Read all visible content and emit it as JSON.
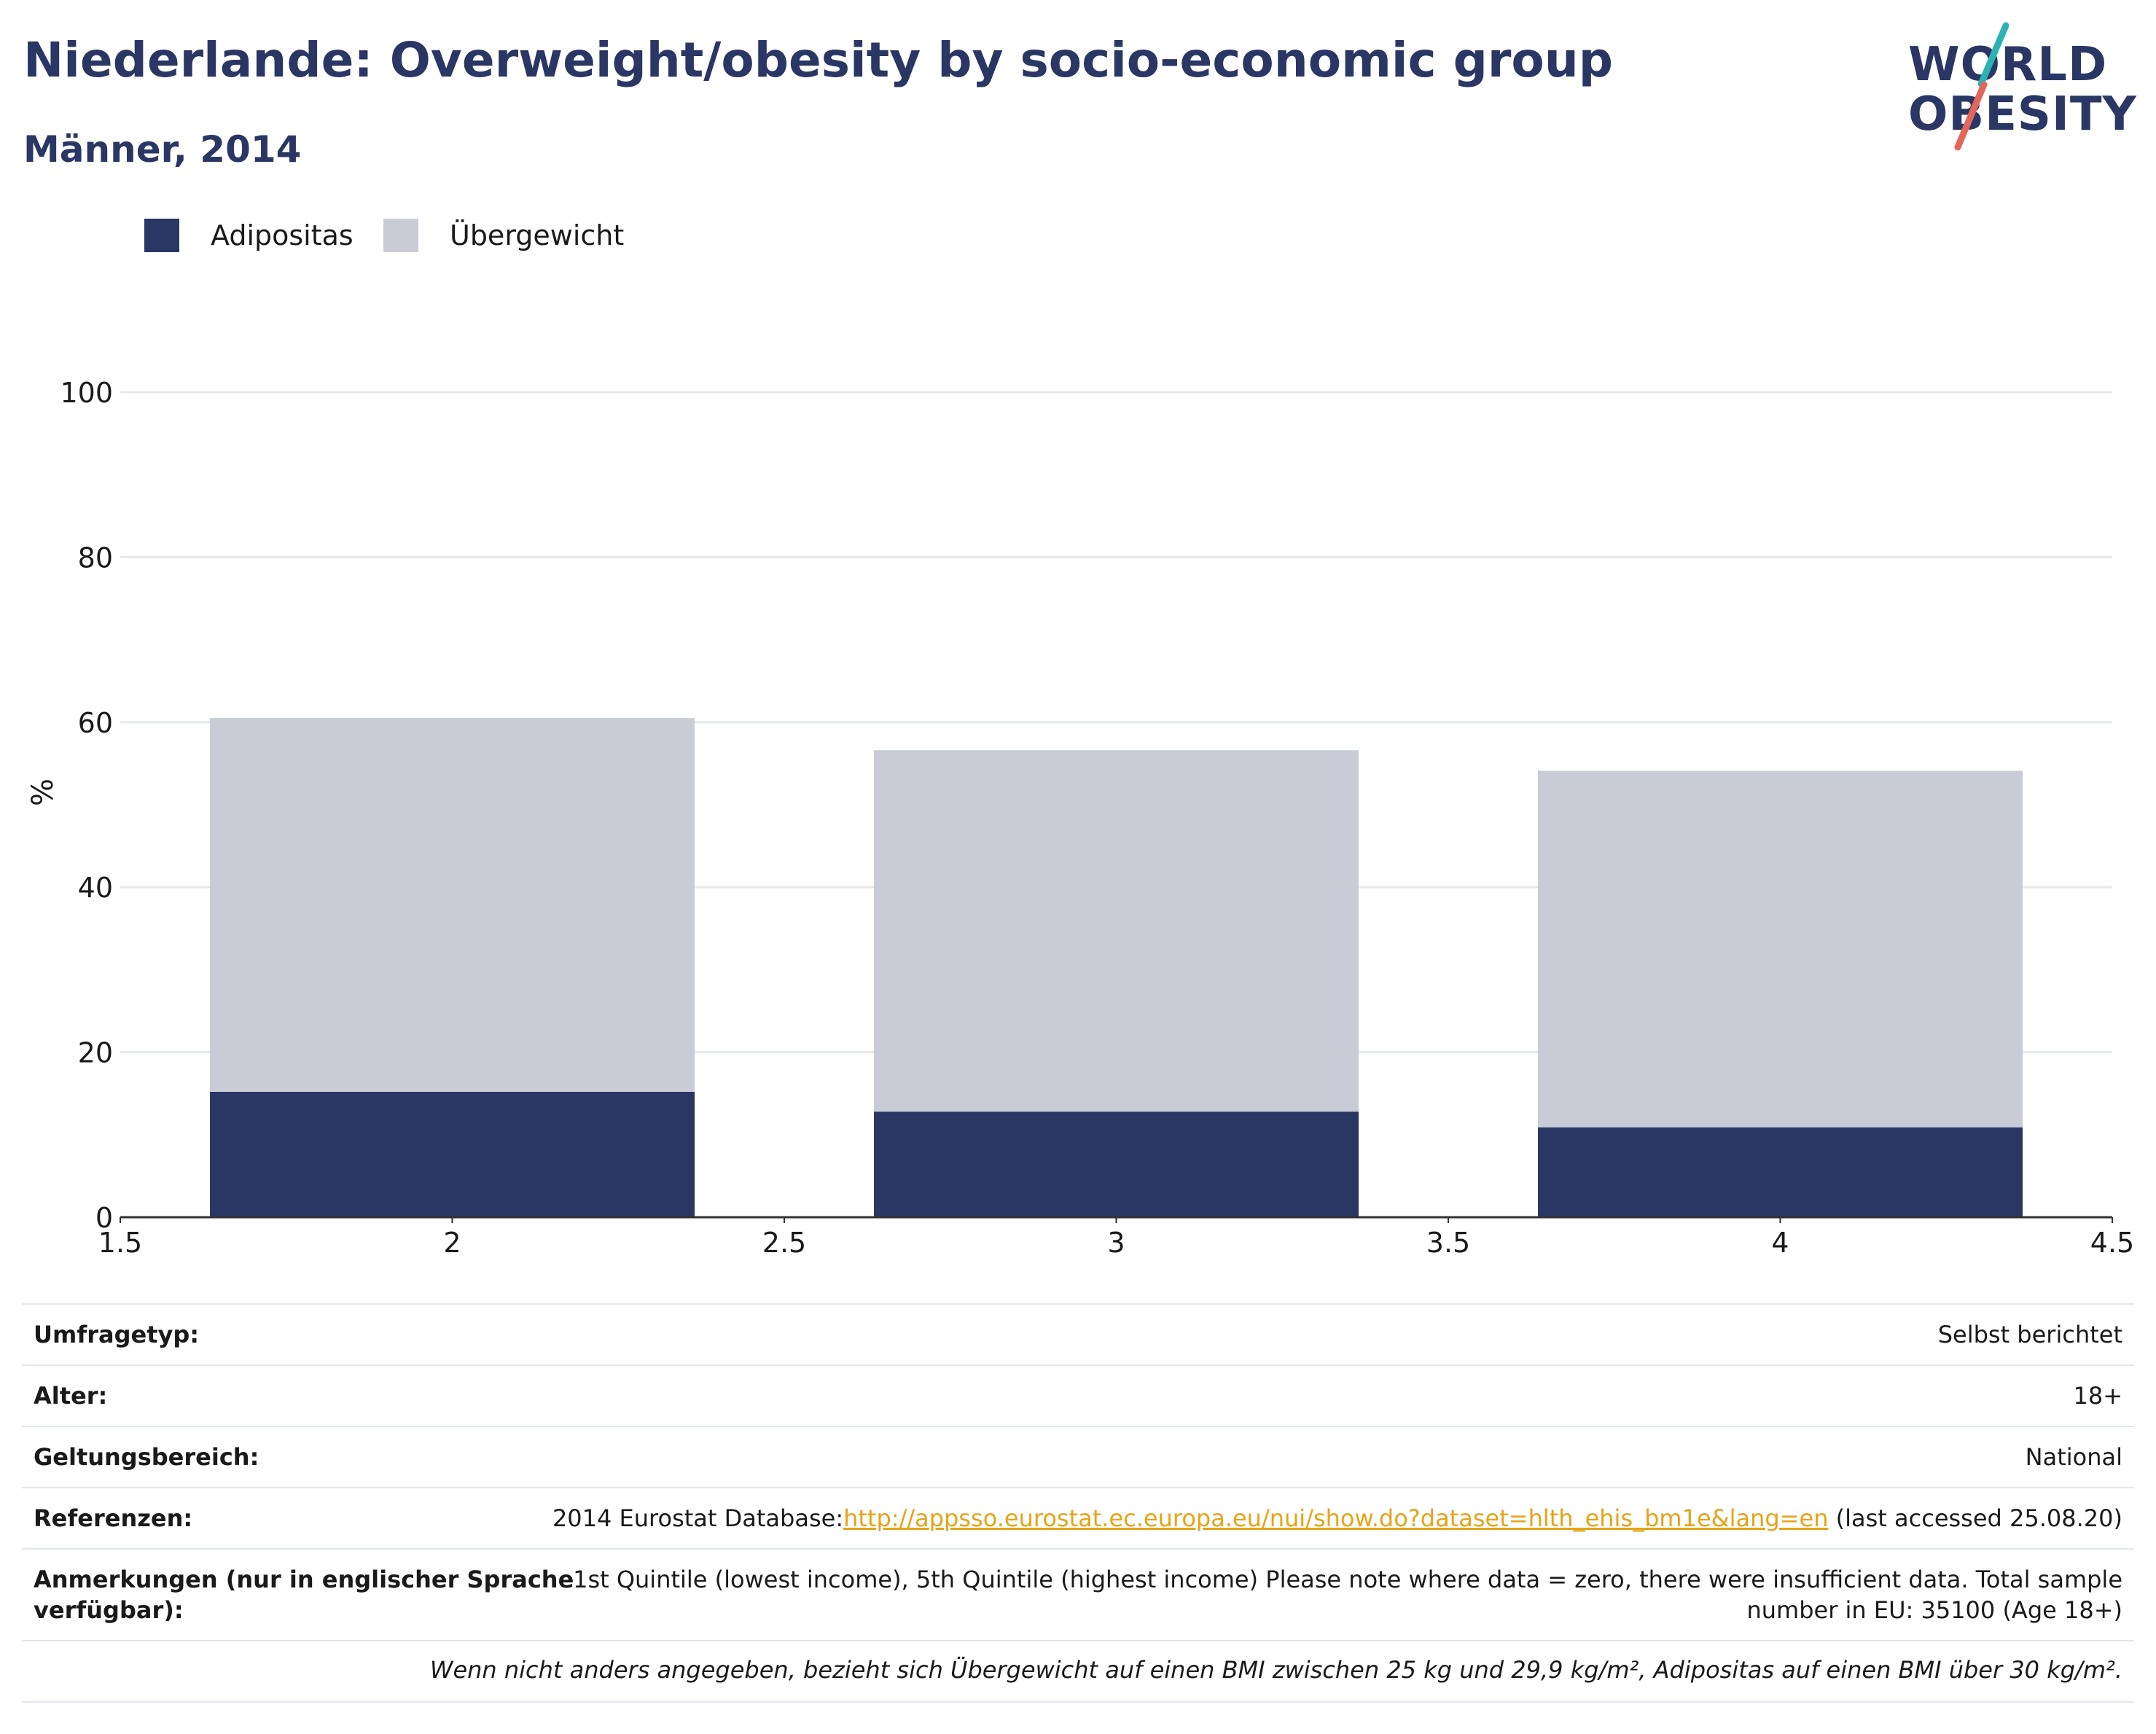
{
  "header": {
    "title": "Niederlande: Overweight/obesity by socio-economic group",
    "subtitle": "Männer, 2014"
  },
  "logo": {
    "line1": "WORLD",
    "line2": "OBESITY",
    "accent_colors": [
      "#2bb3b1",
      "#e2665a"
    ]
  },
  "legend": [
    {
      "label": "Adipositas",
      "color": "#2a3663"
    },
    {
      "label": "Übergewicht",
      "color": "#c9ccd7"
    }
  ],
  "chart_data": {
    "type": "bar",
    "stacked": true,
    "x": [
      2,
      3,
      4
    ],
    "series": [
      {
        "name": "Adipositas",
        "color": "#2a3663",
        "values": [
          15.2,
          12.8,
          10.9
        ]
      },
      {
        "name": "Übergewicht",
        "color": "#c9ccd7",
        "values": [
          45.3,
          43.8,
          43.2
        ]
      }
    ],
    "ylabel": "%",
    "xlim": [
      1.5,
      4.5
    ],
    "ylim": [
      0,
      100
    ],
    "xticks": [
      "1.5",
      "2",
      "2.5",
      "3",
      "3.5",
      "4",
      "4.5"
    ],
    "yticks": [
      "0",
      "20",
      "40",
      "60",
      "80",
      "100"
    ],
    "grid": true,
    "legend_position": "top-left"
  },
  "info": [
    {
      "label": "Umfragetyp:",
      "value": "Selbst berichtet"
    },
    {
      "label": "Alter:",
      "value": "18+"
    },
    {
      "label": "Geltungsbereich:",
      "value": "National"
    },
    {
      "label": "Referenzen:",
      "value_prefix": "2014 Eurostat Database:",
      "link": "http://appsso.eurostat.ec.europa.eu/nui/show.do?dataset=hlth_ehis_bm1e&lang=en",
      "value_suffix": " (last accessed 25.08.20)"
    },
    {
      "label_line1": "Anmerkungen (nur in englischer Sprache",
      "label_line2": "verfügbar):",
      "value_line1": "1st Quintile (lowest income), 5th Quintile (highest income) Please note where data = zero, there were insufficient data. Total sample",
      "value_line2": "number in EU: 35100 (Age 18+)"
    }
  ],
  "footnote": "Wenn nicht anders angegeben, bezieht sich Übergewicht auf einen BMI zwischen 25 kg und 29,9 kg/m², Adipositas auf einen BMI über 30 kg/m²."
}
